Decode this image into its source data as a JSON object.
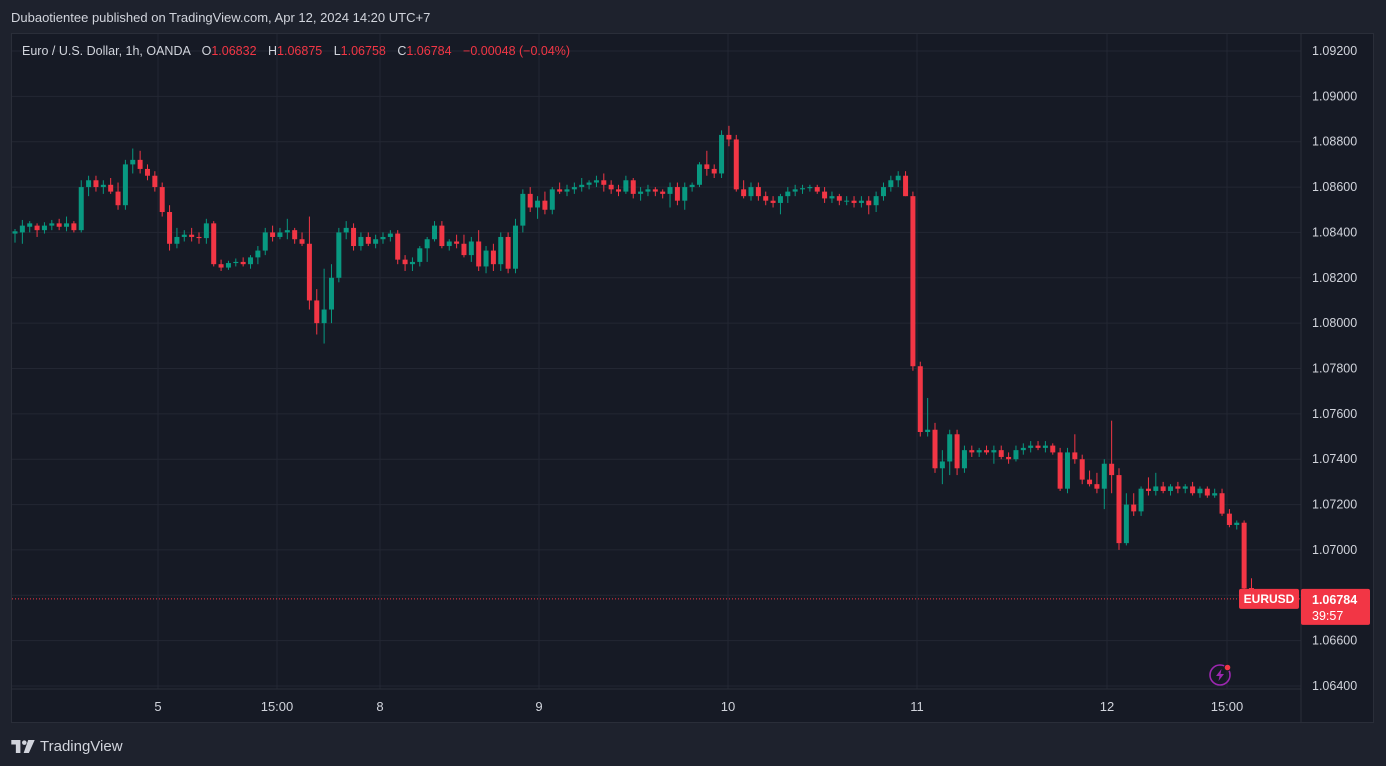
{
  "publisher_line": "Dubaotientee published on TradingView.com, Apr 12, 2024 14:20 UTC+7",
  "footer": {
    "brand": "TradingView"
  },
  "legend": {
    "symbol": "Euro / U.S. Dollar, 1h, OANDA",
    "o_label": "O",
    "o_value": "1.06832",
    "h_label": "H",
    "h_value": "1.06875",
    "l_label": "L",
    "l_value": "1.06758",
    "c_label": "C",
    "c_value": "1.06784",
    "change": "−0.00048 (−0.04%)"
  },
  "price_tag": {
    "symbol": "EURUSD",
    "price": "1.06784",
    "countdown": "39:57"
  },
  "colors": {
    "up": "#089981",
    "down": "#f23645",
    "grid": "#232733",
    "text": "#d1d4dc",
    "alert": "#9c27b0"
  },
  "chart_data": {
    "type": "candlestick",
    "symbol": "EURUSD",
    "interval": "1h",
    "source": "OANDA",
    "yticks": [
      "1.09200",
      "1.09000",
      "1.08800",
      "1.08600",
      "1.08400",
      "1.08200",
      "1.08000",
      "1.07800",
      "1.07600",
      "1.07400",
      "1.07200",
      "1.07000",
      "1.06800",
      "1.06600",
      "1.06400"
    ],
    "ylim": [
      1.0635,
      1.0928
    ],
    "xticks": [
      "5",
      "15:00",
      "8",
      "9",
      "10",
      "11",
      "12",
      "15:00"
    ],
    "grid": true,
    "last_price": 1.06784,
    "candles": [
      [
        1.08395,
        1.08415,
        1.08355,
        1.08405
      ],
      [
        1.084,
        1.08455,
        1.0835,
        1.0843
      ],
      [
        1.08425,
        1.0845,
        1.084,
        1.0844
      ],
      [
        1.0843,
        1.0844,
        1.0838,
        1.0841
      ],
      [
        1.0841,
        1.08445,
        1.08395,
        1.0843
      ],
      [
        1.0843,
        1.08455,
        1.0841,
        1.0844
      ],
      [
        1.0844,
        1.0846,
        1.0841,
        1.08425
      ],
      [
        1.08425,
        1.0847,
        1.08405,
        1.0844
      ],
      [
        1.0844,
        1.0845,
        1.084,
        1.0841
      ],
      [
        1.0841,
        1.0863,
        1.084,
        1.086
      ],
      [
        1.086,
        1.0865,
        1.0856,
        1.0863
      ],
      [
        1.0863,
        1.0865,
        1.0858,
        1.086
      ],
      [
        1.086,
        1.0863,
        1.0857,
        1.0861
      ],
      [
        1.0861,
        1.0864,
        1.0857,
        1.0858
      ],
      [
        1.0858,
        1.0862,
        1.085,
        1.0852
      ],
      [
        1.0852,
        1.0872,
        1.085,
        1.087
      ],
      [
        1.087,
        1.0877,
        1.0866,
        1.0872
      ],
      [
        1.0872,
        1.0876,
        1.0866,
        1.0868
      ],
      [
        1.0868,
        1.087,
        1.0863,
        1.0865
      ],
      [
        1.0865,
        1.0867,
        1.0858,
        1.086
      ],
      [
        1.086,
        1.0862,
        1.0847,
        1.0849
      ],
      [
        1.0849,
        1.0852,
        1.0832,
        1.0835
      ],
      [
        1.0835,
        1.0842,
        1.0833,
        1.0838
      ],
      [
        1.0838,
        1.0841,
        1.0836,
        1.0839
      ],
      [
        1.0839,
        1.0842,
        1.0836,
        1.0838
      ],
      [
        1.0838,
        1.084,
        1.0835,
        1.08375
      ],
      [
        1.08375,
        1.0846,
        1.0835,
        1.0844
      ],
      [
        1.0844,
        1.0845,
        1.0825,
        1.0826
      ],
      [
        1.0826,
        1.0828,
        1.0823,
        1.08245
      ],
      [
        1.08245,
        1.08275,
        1.08235,
        1.08265
      ],
      [
        1.08265,
        1.08285,
        1.0825,
        1.0827
      ],
      [
        1.0827,
        1.0829,
        1.0825,
        1.0826
      ],
      [
        1.0826,
        1.083,
        1.0824,
        1.0829
      ],
      [
        1.0829,
        1.0834,
        1.0826,
        1.0832
      ],
      [
        1.0832,
        1.0842,
        1.083,
        1.084
      ],
      [
        1.084,
        1.0843,
        1.0836,
        1.0838
      ],
      [
        1.0838,
        1.0842,
        1.0837,
        1.084
      ],
      [
        1.084,
        1.0846,
        1.0837,
        1.0841
      ],
      [
        1.0841,
        1.0842,
        1.0835,
        1.0837
      ],
      [
        1.0837,
        1.084,
        1.0834,
        1.0835
      ],
      [
        1.0835,
        1.0847,
        1.0806,
        1.081
      ],
      [
        1.081,
        1.0815,
        1.0795,
        1.08
      ],
      [
        1.08,
        1.0824,
        1.0791,
        1.0806
      ],
      [
        1.0806,
        1.0826,
        1.08,
        1.082
      ],
      [
        1.082,
        1.0842,
        1.0818,
        1.084
      ],
      [
        1.084,
        1.0845,
        1.0837,
        1.0842
      ],
      [
        1.0842,
        1.0844,
        1.0832,
        1.0834
      ],
      [
        1.0834,
        1.084,
        1.0832,
        1.0838
      ],
      [
        1.0838,
        1.084,
        1.0834,
        1.0835
      ],
      [
        1.0835,
        1.0839,
        1.0833,
        1.0837
      ],
      [
        1.0837,
        1.084,
        1.0835,
        1.0838
      ],
      [
        1.0838,
        1.0841,
        1.0836,
        1.08395
      ],
      [
        1.08395,
        1.0841,
        1.0826,
        1.0828
      ],
      [
        1.0828,
        1.083,
        1.0823,
        1.0826
      ],
      [
        1.0826,
        1.0829,
        1.0823,
        1.0827
      ],
      [
        1.0827,
        1.0834,
        1.0825,
        1.0833
      ],
      [
        1.0833,
        1.0838,
        1.0827,
        1.0837
      ],
      [
        1.0837,
        1.0845,
        1.0836,
        1.0843
      ],
      [
        1.0843,
        1.0845,
        1.0833,
        1.0834
      ],
      [
        1.0834,
        1.0837,
        1.0832,
        1.0836
      ],
      [
        1.0836,
        1.0839,
        1.0833,
        1.0835
      ],
      [
        1.0835,
        1.0839,
        1.0829,
        1.083
      ],
      [
        1.083,
        1.0838,
        1.0827,
        1.0836
      ],
      [
        1.0836,
        1.0841,
        1.0823,
        1.0825
      ],
      [
        1.0825,
        1.0834,
        1.0822,
        1.0832
      ],
      [
        1.0832,
        1.0835,
        1.0823,
        1.0826
      ],
      [
        1.0826,
        1.084,
        1.0823,
        1.0838
      ],
      [
        1.0838,
        1.084,
        1.0822,
        1.0824
      ],
      [
        1.0824,
        1.0846,
        1.0822,
        1.0843
      ],
      [
        1.0843,
        1.0859,
        1.084,
        1.0857
      ],
      [
        1.0857,
        1.086,
        1.0849,
        1.0851
      ],
      [
        1.0851,
        1.0856,
        1.0846,
        1.0854
      ],
      [
        1.0854,
        1.0858,
        1.0848,
        1.085
      ],
      [
        1.085,
        1.086,
        1.0848,
        1.0859
      ],
      [
        1.0859,
        1.0862,
        1.0857,
        1.0858
      ],
      [
        1.0858,
        1.0861,
        1.0856,
        1.0859
      ],
      [
        1.0859,
        1.0862,
        1.0857,
        1.086
      ],
      [
        1.086,
        1.0864,
        1.0858,
        1.0861
      ],
      [
        1.0861,
        1.0863,
        1.0859,
        1.0862
      ],
      [
        1.0862,
        1.0865,
        1.086,
        1.0863
      ],
      [
        1.0863,
        1.0866,
        1.0858,
        1.0861
      ],
      [
        1.0861,
        1.0863,
        1.0857,
        1.0859
      ],
      [
        1.0859,
        1.0861,
        1.0856,
        1.0858
      ],
      [
        1.0858,
        1.0865,
        1.0857,
        1.0863
      ],
      [
        1.0863,
        1.0864,
        1.0855,
        1.0857
      ],
      [
        1.0857,
        1.086,
        1.0854,
        1.0858
      ],
      [
        1.0858,
        1.0861,
        1.0856,
        1.0859
      ],
      [
        1.0859,
        1.086,
        1.0856,
        1.0858
      ],
      [
        1.0858,
        1.0859,
        1.0855,
        1.0857
      ],
      [
        1.0857,
        1.0862,
        1.0851,
        1.086
      ],
      [
        1.086,
        1.0862,
        1.0852,
        1.0854
      ],
      [
        1.0854,
        1.0862,
        1.085,
        1.086
      ],
      [
        1.086,
        1.0862,
        1.0858,
        1.0861
      ],
      [
        1.0861,
        1.0871,
        1.086,
        1.087
      ],
      [
        1.087,
        1.0876,
        1.0865,
        1.0868
      ],
      [
        1.0868,
        1.087,
        1.0864,
        1.0866
      ],
      [
        1.0866,
        1.0885,
        1.0864,
        1.0883
      ],
      [
        1.0883,
        1.0887,
        1.0878,
        1.0881
      ],
      [
        1.0881,
        1.0883,
        1.0858,
        1.0859
      ],
      [
        1.0859,
        1.0863,
        1.0855,
        1.0856
      ],
      [
        1.0856,
        1.0862,
        1.0854,
        1.086
      ],
      [
        1.086,
        1.0862,
        1.0854,
        1.0856
      ],
      [
        1.0856,
        1.0858,
        1.0852,
        1.0854
      ],
      [
        1.0854,
        1.0856,
        1.0851,
        1.0853
      ],
      [
        1.0853,
        1.0857,
        1.0848,
        1.0856
      ],
      [
        1.0856,
        1.086,
        1.0853,
        1.0858
      ],
      [
        1.0858,
        1.0861,
        1.0856,
        1.0859
      ],
      [
        1.0859,
        1.0861,
        1.0857,
        1.08595
      ],
      [
        1.08595,
        1.0861,
        1.0858,
        1.086
      ],
      [
        1.086,
        1.0861,
        1.0857,
        1.0858
      ],
      [
        1.0858,
        1.086,
        1.0853,
        1.0855
      ],
      [
        1.0855,
        1.0858,
        1.0853,
        1.0856
      ],
      [
        1.0856,
        1.0857,
        1.0852,
        1.0854
      ],
      [
        1.0854,
        1.0856,
        1.0852,
        1.0854
      ],
      [
        1.0854,
        1.0856,
        1.0851,
        1.0853
      ],
      [
        1.0853,
        1.0856,
        1.0851,
        1.0854
      ],
      [
        1.0854,
        1.0856,
        1.0848,
        1.0852
      ],
      [
        1.0852,
        1.0858,
        1.0849,
        1.0856
      ],
      [
        1.0856,
        1.0862,
        1.0854,
        1.086
      ],
      [
        1.086,
        1.0865,
        1.0858,
        1.0863
      ],
      [
        1.0863,
        1.0867,
        1.086,
        1.0865
      ],
      [
        1.0865,
        1.0867,
        1.0856,
        1.0856
      ],
      [
        1.0856,
        1.0858,
        1.0779,
        1.0781
      ],
      [
        1.0781,
        1.0783,
        1.075,
        1.0752
      ],
      [
        1.0752,
        1.0767,
        1.075,
        1.0753
      ],
      [
        1.0753,
        1.0756,
        1.0734,
        1.0736
      ],
      [
        1.0736,
        1.0744,
        1.0729,
        1.0739
      ],
      [
        1.0739,
        1.0753,
        1.0733,
        1.0751
      ],
      [
        1.0751,
        1.0753,
        1.0733,
        1.0736
      ],
      [
        1.0736,
        1.0746,
        1.0734,
        1.0744
      ],
      [
        1.0744,
        1.0746,
        1.0741,
        1.0743
      ],
      [
        1.0743,
        1.0745,
        1.0741,
        1.0744
      ],
      [
        1.0744,
        1.0746,
        1.0742,
        1.0743
      ],
      [
        1.0743,
        1.0746,
        1.0738,
        1.0744
      ],
      [
        1.0744,
        1.0746,
        1.074,
        1.0741
      ],
      [
        1.0741,
        1.0743,
        1.0738,
        1.074
      ],
      [
        1.074,
        1.0746,
        1.0739,
        1.0744
      ],
      [
        1.0744,
        1.0747,
        1.0742,
        1.0745
      ],
      [
        1.0745,
        1.0748,
        1.0743,
        1.0746
      ],
      [
        1.0746,
        1.0748,
        1.0744,
        1.0745
      ],
      [
        1.0745,
        1.0748,
        1.0743,
        1.0746
      ],
      [
        1.0746,
        1.0747,
        1.0742,
        1.0743
      ],
      [
        1.0743,
        1.0745,
        1.0726,
        1.0727
      ],
      [
        1.0727,
        1.0745,
        1.0725,
        1.0743
      ],
      [
        1.0743,
        1.0751,
        1.0738,
        1.074
      ],
      [
        1.074,
        1.0742,
        1.0729,
        1.0731
      ],
      [
        1.0731,
        1.0735,
        1.0728,
        1.0729
      ],
      [
        1.0729,
        1.0734,
        1.0725,
        1.0727
      ],
      [
        1.0727,
        1.074,
        1.0718,
        1.0738
      ],
      [
        1.0738,
        1.0757,
        1.0725,
        1.0733
      ],
      [
        1.0733,
        1.0736,
        1.07,
        1.0703
      ],
      [
        1.0703,
        1.0725,
        1.0702,
        1.072
      ],
      [
        1.072,
        1.0725,
        1.0715,
        1.0717
      ],
      [
        1.0717,
        1.0728,
        1.0715,
        1.0727
      ],
      [
        1.0727,
        1.0732,
        1.0724,
        1.0726
      ],
      [
        1.0726,
        1.0734,
        1.0724,
        1.0728
      ],
      [
        1.0728,
        1.073,
        1.0725,
        1.0726
      ],
      [
        1.0726,
        1.0729,
        1.0724,
        1.0728
      ],
      [
        1.0728,
        1.073,
        1.0725,
        1.0727
      ],
      [
        1.0727,
        1.0729,
        1.0725,
        1.0728
      ],
      [
        1.0728,
        1.073,
        1.0724,
        1.0725
      ],
      [
        1.0725,
        1.0728,
        1.0723,
        1.0727
      ],
      [
        1.0727,
        1.0728,
        1.0723,
        1.0724
      ],
      [
        1.0724,
        1.0727,
        1.0723,
        1.0725
      ],
      [
        1.0725,
        1.0727,
        1.0715,
        1.0716
      ],
      [
        1.0716,
        1.0718,
        1.071,
        1.0711
      ],
      [
        1.0711,
        1.0713,
        1.0709,
        1.0712
      ],
      [
        1.0712,
        1.0713,
        1.0681,
        1.0683
      ],
      [
        1.06832,
        1.06875,
        1.06758,
        1.06784
      ]
    ]
  }
}
